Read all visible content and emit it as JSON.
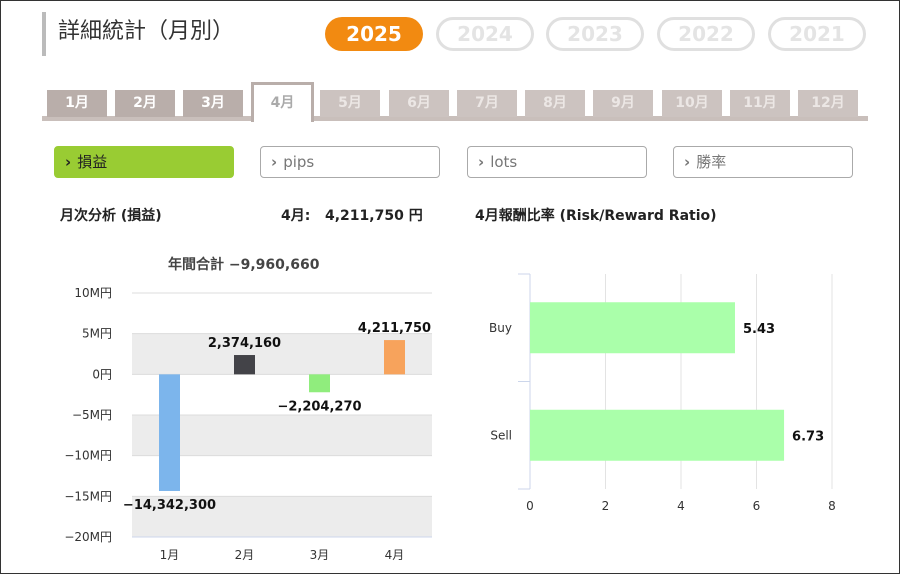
{
  "page_title": "詳細統計（月別）",
  "years": [
    {
      "label": "2025",
      "active": true
    },
    {
      "label": "2024",
      "active": false
    },
    {
      "label": "2023",
      "active": false
    },
    {
      "label": "2022",
      "active": false
    },
    {
      "label": "2021",
      "active": false
    }
  ],
  "months": [
    {
      "label": "1月",
      "state": "normal"
    },
    {
      "label": "2月",
      "state": "normal"
    },
    {
      "label": "3月",
      "state": "normal"
    },
    {
      "label": "4月",
      "state": "active"
    },
    {
      "label": "5月",
      "state": "disabled"
    },
    {
      "label": "6月",
      "state": "disabled"
    },
    {
      "label": "7月",
      "state": "disabled"
    },
    {
      "label": "8月",
      "state": "disabled"
    },
    {
      "label": "9月",
      "state": "disabled"
    },
    {
      "label": "10月",
      "state": "disabled"
    },
    {
      "label": "11月",
      "state": "disabled"
    },
    {
      "label": "12月",
      "state": "disabled"
    }
  ],
  "metric_buttons": [
    {
      "label": "損益",
      "active": true
    },
    {
      "label": "pips",
      "active": false
    },
    {
      "label": "lots",
      "active": false
    },
    {
      "label": "勝率",
      "active": false
    }
  ],
  "monthly_section": {
    "heading": "月次分析 (損益)",
    "current_month_label": "4月:",
    "current_month_value": "4,211,750 円",
    "annual_total": "年間合計 −9,960,660"
  },
  "rr_section": {
    "heading": "4月報酬比率 (Risk/Reward Ratio)"
  },
  "colors": {
    "accent": "#f28a11",
    "green_button": "#99cc33"
  },
  "chart_data": [
    {
      "type": "bar",
      "categories": [
        "1月",
        "2月",
        "3月",
        "4月"
      ],
      "values": [
        -14342300,
        2374160,
        -2204270,
        4211750
      ],
      "data_labels": [
        "−14,342,300",
        "2,374,160",
        "−2,204,270",
        "4,211,750"
      ],
      "colors": [
        "#7cb5ec",
        "#434348",
        "#90ed7d",
        "#f7a35c"
      ],
      "yticks": [
        "10M円",
        "5M円",
        "0円",
        "−5M円",
        "−10M円",
        "−15M円",
        "−20M円"
      ],
      "ylim": [
        -20000000,
        10000000
      ],
      "grid": true
    },
    {
      "type": "bar",
      "orientation": "horizontal",
      "categories": [
        "Buy",
        "Sell"
      ],
      "values": [
        5.43,
        6.73
      ],
      "data_labels": [
        "5.43",
        "6.73"
      ],
      "color": "#aaffaa",
      "xticks": [
        "0",
        "2",
        "4",
        "6",
        "8"
      ],
      "xlim": [
        0,
        8
      ],
      "grid": true
    }
  ]
}
